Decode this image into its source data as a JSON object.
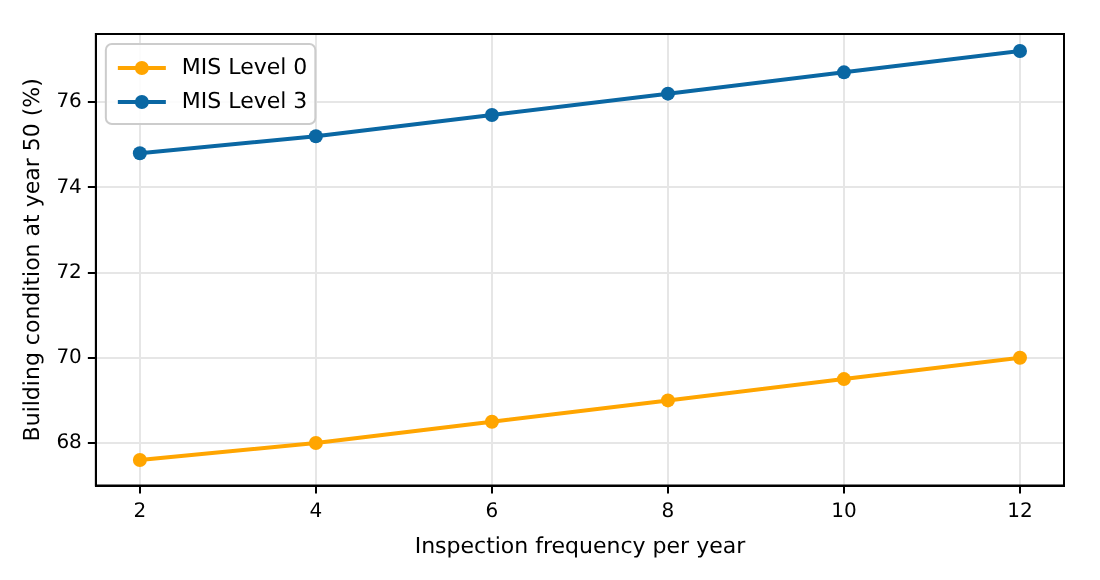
{
  "chart_data": {
    "type": "line",
    "xlabel": "Inspection frequency per year",
    "ylabel": "Building condition at year 50 (%)",
    "x": [
      2,
      4,
      6,
      8,
      10,
      12
    ],
    "series": [
      {
        "name": "MIS Level 0",
        "color": "#ffa500",
        "values": [
          67.6,
          68.0,
          68.5,
          69.0,
          69.5,
          70.0
        ]
      },
      {
        "name": "MIS Level 3",
        "color": "#0a67a3",
        "values": [
          74.8,
          75.2,
          75.7,
          76.2,
          76.7,
          77.2
        ]
      }
    ],
    "xlim": [
      1.5,
      12.5
    ],
    "xticks": [
      2,
      4,
      6,
      8,
      10,
      12
    ],
    "ylim": [
      67.0,
      77.6
    ],
    "yticks": [
      68,
      70,
      72,
      74,
      76
    ],
    "grid": true,
    "legend": "top left",
    "marker": "circle",
    "line_style": "solid"
  }
}
